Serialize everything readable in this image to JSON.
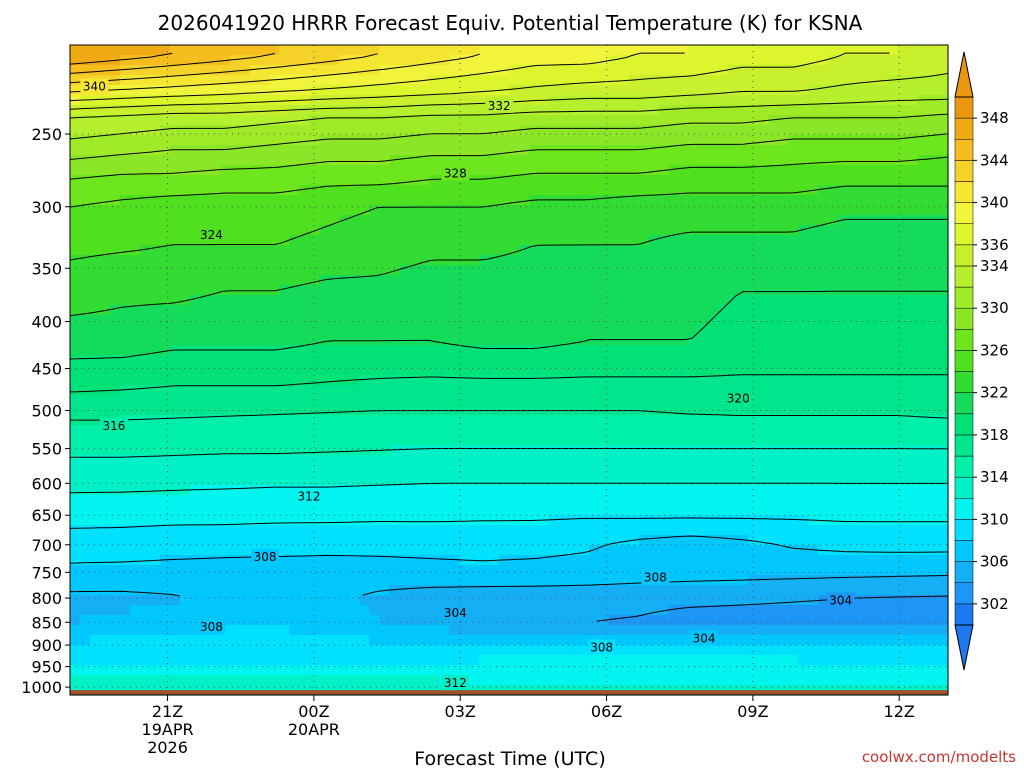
{
  "chart_data": {
    "type": "heatmap",
    "title": "2026041920 HRRR Forecast Equiv. Potential Temperature (K) for KSNA",
    "xlabel": "Forecast Time (UTC)",
    "ylabel": "",
    "y_axis": {
      "scale": "log",
      "inverted": true,
      "ticks": [
        250,
        300,
        350,
        400,
        450,
        500,
        550,
        600,
        650,
        700,
        750,
        800,
        850,
        900,
        950,
        1000
      ],
      "range": [
        1020,
        200
      ]
    },
    "x_axis": {
      "range_hours": [
        -1,
        17
      ],
      "ticks": [
        {
          "hour": 1,
          "label": "21Z",
          "sub1": "19APR",
          "sub2": "2026"
        },
        {
          "hour": 4,
          "label": "00Z",
          "sub1": "20APR",
          "sub2": ""
        },
        {
          "hour": 7,
          "label": "03Z",
          "sub1": "",
          "sub2": ""
        },
        {
          "hour": 10,
          "label": "06Z",
          "sub1": "",
          "sub2": ""
        },
        {
          "hour": 13,
          "label": "09Z",
          "sub1": "",
          "sub2": ""
        },
        {
          "hour": 16,
          "label": "12Z",
          "sub1": "",
          "sub2": ""
        }
      ]
    },
    "grid": true,
    "colorbar": {
      "levels": [
        300,
        302,
        304,
        306,
        308,
        310,
        312,
        314,
        316,
        318,
        320,
        322,
        324,
        326,
        328,
        330,
        332,
        334,
        336,
        338,
        340,
        342,
        344,
        346,
        348,
        350
      ],
      "tick_labels": [
        "302",
        "306",
        "310",
        "314",
        "318",
        "322",
        "326",
        "330",
        "334",
        "336",
        "340",
        "344",
        "348"
      ],
      "tick_values": [
        302,
        306,
        310,
        314,
        318,
        322,
        326,
        330,
        334,
        336,
        340,
        344,
        348
      ],
      "colors": [
        "#1e78f0",
        "#1e96f5",
        "#14aff5",
        "#00c8ff",
        "#00e1ff",
        "#00f5f0",
        "#00f0c8",
        "#00f0aa",
        "#00e68c",
        "#00e178",
        "#14dc5a",
        "#32dc32",
        "#50e11e",
        "#6ee61e",
        "#8ce628",
        "#a0eb28",
        "#b4f02d",
        "#c8f02d",
        "#dcf52d",
        "#f0f53c",
        "#f5e632",
        "#f5d228",
        "#f5be1e",
        "#f0aa14",
        "#eb960f"
      ]
    },
    "profiles": [
      {
        "p": 205,
        "values": [
          348,
          347,
          346,
          345,
          344,
          343,
          342,
          341,
          340,
          339,
          339,
          338,
          338,
          337,
          337,
          336,
          336,
          335
        ]
      },
      {
        "p": 225,
        "values": [
          340,
          339.5,
          339,
          338.5,
          338,
          337.5,
          337,
          336.5,
          336,
          335.5,
          335,
          335,
          334.5,
          334,
          334,
          333.5,
          333,
          333
        ]
      },
      {
        "p": 240,
        "values": [
          334,
          333.5,
          333,
          333,
          332.5,
          332,
          332,
          331.5,
          331.5,
          331,
          331,
          331,
          330.5,
          330.5,
          330,
          330,
          330,
          329.5
        ]
      },
      {
        "p": 260,
        "values": [
          331,
          330.5,
          330,
          330,
          329.5,
          329,
          329,
          328.5,
          328.5,
          328,
          328,
          328,
          327.5,
          327.5,
          327,
          327,
          327,
          326.5
        ]
      },
      {
        "p": 280,
        "values": [
          328,
          327.5,
          327.5,
          327,
          327,
          326.5,
          326.5,
          326,
          326,
          325.5,
          325.5,
          325.5,
          325,
          325,
          325,
          324.5,
          324.5,
          324.5
        ]
      },
      {
        "p": 300,
        "values": [
          326,
          325.5,
          325,
          325,
          325,
          324.5,
          324,
          324,
          324,
          323.5,
          323.5,
          323,
          323,
          323,
          323,
          322.5,
          322.5,
          322.5
        ]
      },
      {
        "p": 330,
        "values": [
          324.5,
          324.3,
          324,
          324,
          324,
          323.5,
          323,
          322.5,
          322.5,
          322,
          322,
          322,
          321.5,
          321.5,
          321.5,
          321,
          321,
          321
        ]
      },
      {
        "p": 370,
        "values": [
          323,
          322.5,
          322.5,
          322,
          322,
          321.5,
          321.5,
          321,
          321,
          321,
          320.5,
          320.5,
          320.5,
          320,
          320,
          320,
          320,
          320
        ]
      },
      {
        "p": 420,
        "values": [
          321,
          321,
          320.5,
          320.5,
          320.5,
          320,
          320,
          320,
          320.5,
          320.5,
          320,
          320,
          320,
          319.5,
          319.5,
          319.5,
          319.5,
          319.5
        ]
      },
      {
        "p": 470,
        "values": [
          318.5,
          318.3,
          318,
          318,
          318,
          317.8,
          317.6,
          317.5,
          317.5,
          317.5,
          317.5,
          317.5,
          317.5,
          317.5,
          317.5,
          317.5,
          317.5,
          317.5
        ]
      },
      {
        "p": 500,
        "values": [
          316.5,
          316.5,
          316.4,
          316.3,
          316.2,
          316.1,
          316,
          316,
          316,
          316,
          316,
          316,
          316.2,
          316.3,
          316.3,
          316.3,
          316.3,
          316.5
        ]
      },
      {
        "p": 550,
        "values": [
          314.5,
          314.5,
          314.4,
          314.3,
          314.3,
          314.2,
          314.1,
          314,
          314,
          314,
          314,
          314,
          314,
          314,
          314,
          314,
          314,
          314
        ]
      },
      {
        "p": 600,
        "values": [
          312.5,
          312.5,
          312.4,
          312.3,
          312.2,
          312.2,
          312.1,
          312,
          312,
          312,
          312,
          312,
          312,
          312,
          312,
          312,
          312,
          312
        ]
      },
      {
        "p": 650,
        "values": [
          310.8,
          310.7,
          310.6,
          310.6,
          310.5,
          310.5,
          310.4,
          310.4,
          310.3,
          310.3,
          310.2,
          310.3,
          310.3,
          310.3,
          310.3,
          310.4,
          310.4,
          310.4
        ]
      },
      {
        "p": 700,
        "values": [
          309,
          309,
          308.8,
          308.7,
          308.6,
          308.5,
          308.5,
          308.6,
          308.7,
          308.6,
          308.3,
          307.5,
          307,
          307.5,
          308.2,
          308.5,
          308.6,
          308.6
        ]
      },
      {
        "p": 750,
        "values": [
          307.5,
          307.4,
          307.3,
          307.2,
          307.2,
          307.2,
          307.3,
          307.4,
          307.5,
          307.4,
          307.2,
          307,
          306.8,
          306.7,
          306.6,
          306.5,
          306.4,
          306.3
        ]
      },
      {
        "p": 800,
        "values": [
          305.5,
          305.5,
          305.8,
          306.5,
          306.8,
          306.5,
          305.5,
          305,
          304.8,
          304.8,
          304.8,
          304.6,
          304.5,
          304.4,
          304.2,
          304,
          303.9,
          303.8
        ]
      },
      {
        "p": 850,
        "values": [
          306,
          306.3,
          307,
          307.5,
          307.6,
          307.2,
          306,
          305,
          304.5,
          304.2,
          304,
          303.8,
          303.2,
          303,
          303,
          303,
          303,
          302.8
        ]
      },
      {
        "p": 900,
        "values": [
          308.5,
          308.6,
          308.8,
          309,
          309,
          308.8,
          308.5,
          308.3,
          308.2,
          308,
          308,
          308,
          307.8,
          307.8,
          307.8,
          307.8,
          307.8,
          307.8
        ]
      },
      {
        "p": 950,
        "values": [
          310.5,
          310.3,
          310,
          309.8,
          309.8,
          310,
          310.3,
          310.5,
          310.8,
          311,
          311,
          311,
          311,
          311,
          311,
          310.8,
          310.8,
          310.8
        ]
      },
      {
        "p": 1000,
        "values": [
          313,
          313,
          313.2,
          313.3,
          313.3,
          313.2,
          313,
          312.8,
          312.6,
          312.5,
          312.4,
          312.3,
          312.2,
          312.2,
          312.2,
          312.2,
          312.2,
          312.2
        ]
      }
    ],
    "contour_labels": [
      {
        "text": "340",
        "hour": -0.5,
        "p": 222
      },
      {
        "text": "332",
        "hour": 7.8,
        "p": 233
      },
      {
        "text": "328",
        "hour": 6.9,
        "p": 276
      },
      {
        "text": "324",
        "hour": 1.9,
        "p": 322
      },
      {
        "text": "320",
        "hour": 12.7,
        "p": 485
      },
      {
        "text": "316",
        "hour": -0.1,
        "p": 520
      },
      {
        "text": "312",
        "hour": 3.9,
        "p": 620
      },
      {
        "text": "308",
        "hour": 3.0,
        "p": 722
      },
      {
        "text": "308",
        "hour": 11.0,
        "p": 760
      },
      {
        "text": "304",
        "hour": 14.8,
        "p": 805
      },
      {
        "text": "308",
        "hour": 1.9,
        "p": 860
      },
      {
        "text": "304",
        "hour": 6.9,
        "p": 830
      },
      {
        "text": "304",
        "hour": 12.0,
        "p": 885
      },
      {
        "text": "308",
        "hour": 9.9,
        "p": 905
      },
      {
        "text": "312",
        "hour": 6.9,
        "p": 990
      }
    ],
    "ground_p": 1000
  },
  "credit": "coolwx.com/modelts"
}
